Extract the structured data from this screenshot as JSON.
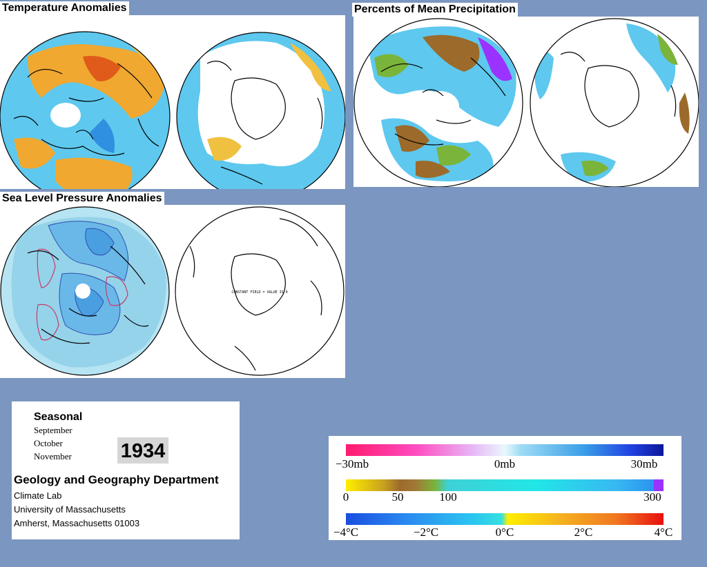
{
  "titles": {
    "temperature": "Temperature Anomalies",
    "precipitation": "Percents of Mean Precipitation",
    "pressure": "Sea Level Pressure Anomalies"
  },
  "maps": {
    "pressure_south_note": "CONSTANT FIELD = VALUE IS 0"
  },
  "info": {
    "heading": "Seasonal",
    "months": [
      "September",
      "October",
      "November"
    ],
    "year": "1934",
    "department": "Geology and Geography Department",
    "lines": [
      "Climate Lab",
      "University of Massachusetts",
      "Amherst, Massachusetts 01003"
    ]
  },
  "legend": {
    "pressure": {
      "labels": [
        "−30mb",
        "0mb",
        "30mb"
      ],
      "values": [
        -30,
        0,
        30
      ]
    },
    "precipitation": {
      "labels": [
        "0",
        "50",
        "100",
        "300"
      ],
      "values": [
        0,
        50,
        100,
        300
      ]
    },
    "temperature": {
      "labels": [
        "−4°C",
        "−2°C",
        "0°C",
        "2°C",
        "4°C"
      ],
      "values": [
        -4,
        -2,
        0,
        2,
        4
      ]
    }
  },
  "colors": {
    "background": "#7b96c0",
    "warm": "#f0a830",
    "hot": "#e05a1a",
    "cool": "#5ec8ee",
    "cold": "#2f8fe0",
    "green": "#7ab43a",
    "brown": "#9c6a2a",
    "purple": "#9a33ff"
  }
}
